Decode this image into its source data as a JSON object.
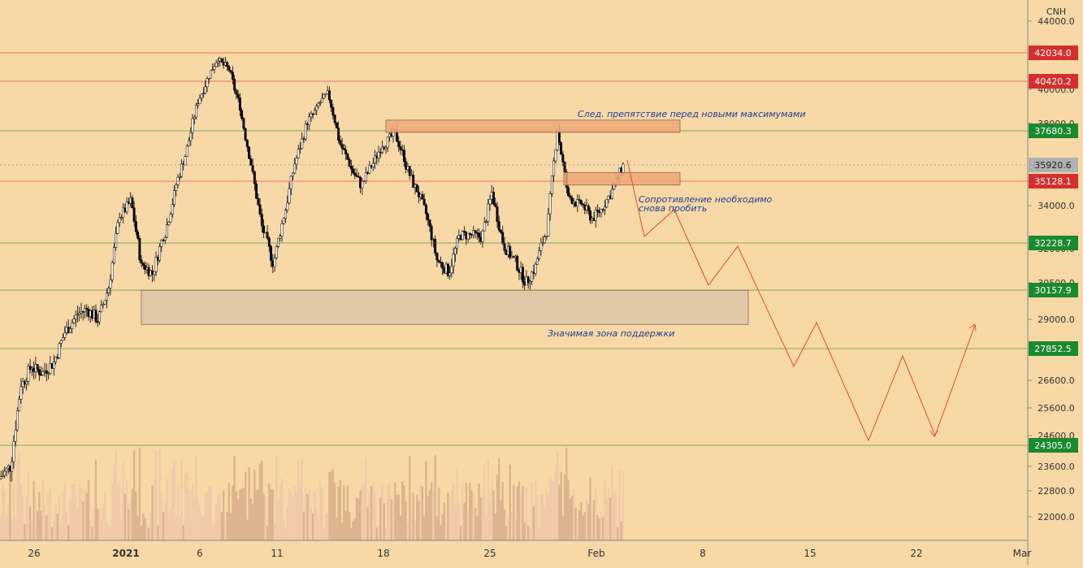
{
  "chart_data": {
    "type": "candlestick",
    "currency": "CNH",
    "x_ticks": [
      "26",
      "2021",
      "6",
      "11",
      "18",
      "25",
      "Feb",
      "8",
      "15",
      "22",
      "Mar"
    ],
    "y_ticks": [
      44000,
      40000,
      38000,
      34000,
      32000,
      30500,
      29000,
      26600,
      25600,
      24600,
      23600,
      22800,
      22000
    ],
    "y_tick_labels": [
      "44000.0",
      "40000.0",
      "38000.0",
      "34000.0",
      "32000.0",
      "30500.0",
      "29000.0",
      "26600.0",
      "25600.0",
      "24600.0",
      "23600.0",
      "22800.0",
      "22000.0"
    ],
    "ylim": [
      20800,
      44800
    ],
    "current_price": {
      "value": 35920.6,
      "label": "35920.6",
      "color": "#b0b0b0"
    },
    "levels": [
      {
        "value": 42034.0,
        "label": "42034.0",
        "kind": "resistance",
        "color": "#d32f2f"
      },
      {
        "value": 40420.2,
        "label": "40420.2",
        "kind": "resistance",
        "color": "#d32f2f"
      },
      {
        "value": 37680.3,
        "label": "37680.3",
        "kind": "support",
        "color": "#1b8a2f"
      },
      {
        "value": 35128.1,
        "label": "35128.1",
        "kind": "resistance",
        "color": "#d32f2f"
      },
      {
        "value": 32228.7,
        "label": "32228.7",
        "kind": "support",
        "color": "#1b8a2f"
      },
      {
        "value": 30157.9,
        "label": "30157.9",
        "kind": "support",
        "color": "#1b8a2f"
      },
      {
        "value": 27852.5,
        "label": "27852.5",
        "kind": "support",
        "color": "#1b8a2f"
      },
      {
        "value": 24305.0,
        "label": "24305.0",
        "kind": "support",
        "color": "#1b8a2f"
      }
    ],
    "zones": [
      {
        "name": "upper-obstacle-zone",
        "y_range": [
          37600,
          38200
        ],
        "x_range": [
          18.0,
          30.0
        ],
        "fill": "#f0a878"
      },
      {
        "name": "resistance-zone",
        "y_range": [
          34950,
          35550
        ],
        "x_range": [
          25.45,
          30.0
        ],
        "fill": "#f0a878"
      },
      {
        "name": "support-zone",
        "y_range": [
          28800,
          30150
        ],
        "x_range": [
          2.85,
          30.65
        ],
        "fill": "#d8c3a5"
      }
    ],
    "annotations": [
      {
        "text": "След. препятствие перед новыми максимумами",
        "x": 26.4,
        "y": 38550
      },
      {
        "text": "Сопротивление необходимо",
        "x": 29.0,
        "y": 34200
      },
      {
        "text": "снова пробить",
        "x": 29.0,
        "y": 33800
      },
      {
        "text": "Значимая зона поддержки",
        "x": 25.0,
        "y": 28350
      }
    ],
    "projection": {
      "color": "#e04a3a",
      "points": [
        [
          28.75,
          36000
        ],
        [
          29.5,
          32400
        ],
        [
          31.0,
          34100
        ],
        [
          32.55,
          30500
        ],
        [
          33.85,
          32250
        ],
        [
          36.4,
          26900
        ],
        [
          37.3,
          28950
        ],
        [
          40.05,
          24500
        ],
        [
          41.55,
          27550
        ],
        [
          43.2,
          24700
        ],
        [
          45.1,
          28950
        ]
      ]
    },
    "candles_summary": {
      "x_start": -0.9,
      "x_end": 28.5,
      "daily_closes": [
        23600,
        26500,
        27200,
        26900,
        27300,
        28500,
        29100,
        29400,
        29000,
        30300,
        33600,
        34200,
        31200,
        30900,
        32600,
        34500,
        36400,
        38900,
        40500,
        41800,
        41100,
        39000,
        36000,
        33000,
        31400,
        33500,
        36000,
        37800,
        38800,
        39700,
        37300,
        36000,
        35000,
        35900,
        37000,
        37500,
        36300,
        34800,
        33600,
        31500,
        31000,
        32500,
        32600,
        32500,
        34600,
        32300,
        31500,
        30600,
        31200,
        32800,
        37800,
        34300,
        34000,
        33500,
        33800,
        34700,
        35900
      ],
      "volume_style": "bars"
    }
  }
}
